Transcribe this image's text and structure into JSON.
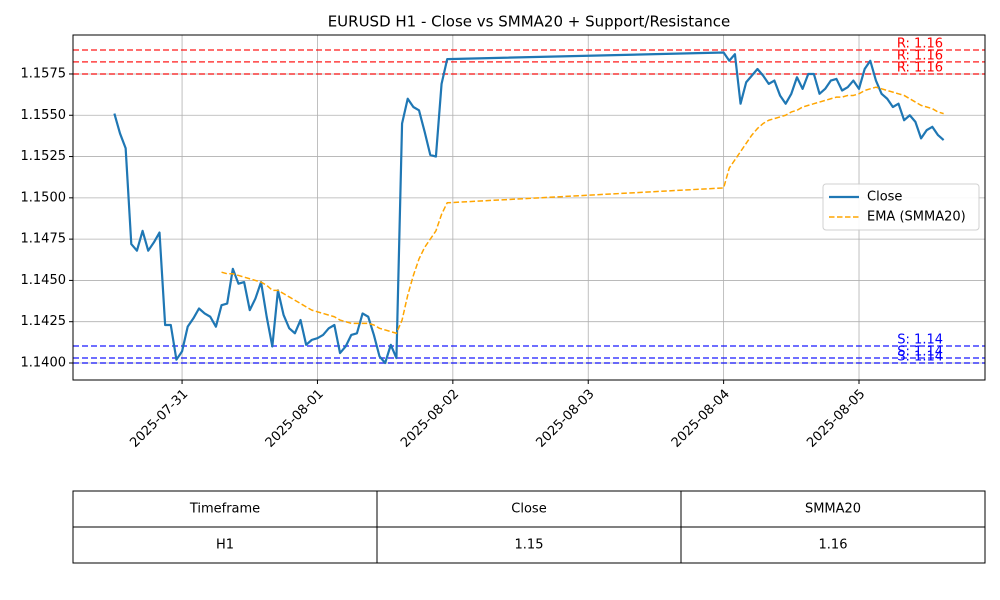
{
  "chart_data": {
    "type": "line",
    "title": "EURUSD H1 - Close vs SMMA20 + Support/Resistance",
    "x": [
      "2025-07-30 12:00",
      "2025-07-30 13:00",
      "2025-07-30 14:00",
      "2025-07-30 15:00",
      "2025-07-30 16:00",
      "2025-07-30 17:00",
      "2025-07-30 18:00",
      "2025-07-30 19:00",
      "2025-07-30 20:00",
      "2025-07-30 21:00",
      "2025-07-30 22:00",
      "2025-07-30 23:00",
      "2025-07-31 00:00",
      "2025-07-31 01:00",
      "2025-07-31 02:00",
      "2025-07-31 03:00",
      "2025-07-31 04:00",
      "2025-07-31 05:00",
      "2025-07-31 06:00",
      "2025-07-31 07:00",
      "2025-07-31 08:00",
      "2025-07-31 09:00",
      "2025-07-31 10:00",
      "2025-07-31 11:00",
      "2025-07-31 12:00",
      "2025-07-31 13:00",
      "2025-07-31 14:00",
      "2025-07-31 15:00",
      "2025-07-31 16:00",
      "2025-07-31 17:00",
      "2025-07-31 18:00",
      "2025-07-31 19:00",
      "2025-07-31 20:00",
      "2025-07-31 21:00",
      "2025-07-31 22:00",
      "2025-07-31 23:00",
      "2025-08-01 00:00",
      "2025-08-01 01:00",
      "2025-08-01 02:00",
      "2025-08-01 03:00",
      "2025-08-01 04:00",
      "2025-08-01 05:00",
      "2025-08-01 06:00",
      "2025-08-01 07:00",
      "2025-08-01 08:00",
      "2025-08-01 09:00",
      "2025-08-01 10:00",
      "2025-08-01 11:00",
      "2025-08-01 12:00",
      "2025-08-01 13:00",
      "2025-08-01 14:00",
      "2025-08-01 15:00",
      "2025-08-01 16:00",
      "2025-08-01 17:00",
      "2025-08-01 18:00",
      "2025-08-01 19:00",
      "2025-08-01 20:00",
      "2025-08-01 21:00",
      "2025-08-01 22:00",
      "2025-08-01 23:00",
      "2025-08-04 00:00",
      "2025-08-04 01:00",
      "2025-08-04 02:00",
      "2025-08-04 03:00",
      "2025-08-04 04:00",
      "2025-08-04 05:00",
      "2025-08-04 06:00",
      "2025-08-04 07:00",
      "2025-08-04 08:00",
      "2025-08-04 09:00",
      "2025-08-04 10:00",
      "2025-08-04 11:00",
      "2025-08-04 12:00",
      "2025-08-04 13:00",
      "2025-08-04 14:00",
      "2025-08-04 15:00",
      "2025-08-04 16:00",
      "2025-08-04 17:00",
      "2025-08-04 18:00",
      "2025-08-04 19:00",
      "2025-08-04 20:00",
      "2025-08-04 21:00",
      "2025-08-04 22:00",
      "2025-08-04 23:00",
      "2025-08-05 00:00",
      "2025-08-05 01:00",
      "2025-08-05 02:00",
      "2025-08-05 03:00",
      "2025-08-05 04:00",
      "2025-08-05 05:00",
      "2025-08-05 06:00",
      "2025-08-05 07:00",
      "2025-08-05 08:00",
      "2025-08-05 09:00",
      "2025-08-05 10:00",
      "2025-08-05 11:00",
      "2025-08-05 12:00",
      "2025-08-05 13:00",
      "2025-08-05 14:00",
      "2025-08-05 15:00"
    ],
    "series": [
      {
        "name": "Close",
        "color": "#1f77b4",
        "dash": false,
        "values": [
          1.1551,
          1.1539,
          1.153,
          1.1472,
          1.1468,
          1.148,
          1.1468,
          1.1473,
          1.1479,
          1.1423,
          1.1423,
          1.1402,
          1.1407,
          1.1422,
          1.1427,
          1.1433,
          1.143,
          1.1428,
          1.1422,
          1.1435,
          1.1436,
          1.1457,
          1.1448,
          1.1449,
          1.1432,
          1.1439,
          1.1449,
          1.1428,
          1.141,
          1.1444,
          1.1429,
          1.1421,
          1.1418,
          1.1426,
          1.1411,
          1.1414,
          1.1415,
          1.1417,
          1.1421,
          1.1423,
          1.1406,
          1.141,
          1.1417,
          1.1418,
          1.143,
          1.1428,
          1.1417,
          1.1404,
          1.14,
          1.1411,
          1.1403,
          1.1545,
          1.156,
          1.1555,
          1.1553,
          1.154,
          1.1526,
          1.1525,
          1.1569,
          1.1584,
          1.1588,
          1.1583,
          1.1587,
          1.1557,
          1.157,
          1.1574,
          1.1578,
          1.1574,
          1.1569,
          1.1571,
          1.1562,
          1.1557,
          1.1563,
          1.1573,
          1.1566,
          1.1575,
          1.1575,
          1.1563,
          1.1566,
          1.1571,
          1.1572,
          1.1565,
          1.1567,
          1.1571,
          1.1566,
          1.1578,
          1.1583,
          1.1571,
          1.1563,
          1.156,
          1.1555,
          1.1557,
          1.1547,
          1.155,
          1.1546,
          1.1536,
          1.1541,
          1.1543,
          1.1538,
          1.1535
        ]
      },
      {
        "name": "EMA (SMMA20)",
        "color": "#ffa500",
        "dash": true,
        "values": [
          null,
          null,
          null,
          null,
          null,
          null,
          null,
          null,
          null,
          null,
          null,
          null,
          null,
          null,
          null,
          null,
          null,
          null,
          null,
          1.1455,
          1.1454,
          1.1454,
          1.1453,
          1.1452,
          1.1451,
          1.145,
          1.1449,
          1.1447,
          1.1444,
          1.1444,
          1.1442,
          1.144,
          1.1438,
          1.1436,
          1.1434,
          1.1432,
          1.1431,
          1.143,
          1.1429,
          1.1428,
          1.1426,
          1.1425,
          1.1424,
          1.1424,
          1.1424,
          1.1424,
          1.1423,
          1.1421,
          1.142,
          1.1419,
          1.1418,
          1.1426,
          1.1441,
          1.1453,
          1.1463,
          1.147,
          1.1475,
          1.148,
          1.149,
          1.1497,
          1.1506,
          1.1518,
          1.1523,
          1.1528,
          1.1533,
          1.1538,
          1.1542,
          1.1545,
          1.1547,
          1.1548,
          1.1549,
          1.155,
          1.1552,
          1.1553,
          1.1555,
          1.1556,
          1.1557,
          1.1558,
          1.1559,
          1.156,
          1.1561,
          1.1561,
          1.1562,
          1.1562,
          1.1563,
          1.1565,
          1.1566,
          1.1567,
          1.1566,
          1.1565,
          1.1564,
          1.1563,
          1.1562,
          1.156,
          1.1558,
          1.1556,
          1.1555,
          1.1554,
          1.1552,
          1.1551
        ]
      }
    ],
    "hlines": [
      {
        "value": 1.15895,
        "label": "R: 1.16",
        "color": "#ff0000"
      },
      {
        "value": 1.15823,
        "label": "R: 1.16",
        "color": "#ff0000"
      },
      {
        "value": 1.1575,
        "label": "R: 1.16",
        "color": "#ff0000"
      },
      {
        "value": 1.14103,
        "label": "S: 1.14",
        "color": "#0000ff"
      },
      {
        "value": 1.1403,
        "label": "S: 1.14",
        "color": "#0000ff"
      },
      {
        "value": 1.14,
        "label": "S: 1.14",
        "color": "#0000ff"
      }
    ],
    "xlim": [
      "2025-07-30 04:40",
      "2025-08-05 22:20"
    ],
    "xticks": [
      "2025-07-31",
      "2025-08-01",
      "2025-08-02",
      "2025-08-03",
      "2025-08-04",
      "2025-08-05"
    ],
    "ylim": [
      1.13897,
      1.15986
    ],
    "yticks": [
      {
        "value": 1.14,
        "label": "1.1400"
      },
      1.1425,
      {
        "value": 1.145,
        "label": "1.1450"
      },
      1.1475,
      {
        "value": 1.15,
        "label": "1.1500"
      },
      1.1525,
      {
        "value": 1.155,
        "label": "1.1550"
      },
      1.1575
    ],
    "grid": true,
    "legend": "center right"
  },
  "table": {
    "header": [
      "Timeframe",
      "Close",
      "SMMA20"
    ],
    "rows": [
      [
        "H1",
        "1.15",
        "1.16"
      ]
    ]
  }
}
